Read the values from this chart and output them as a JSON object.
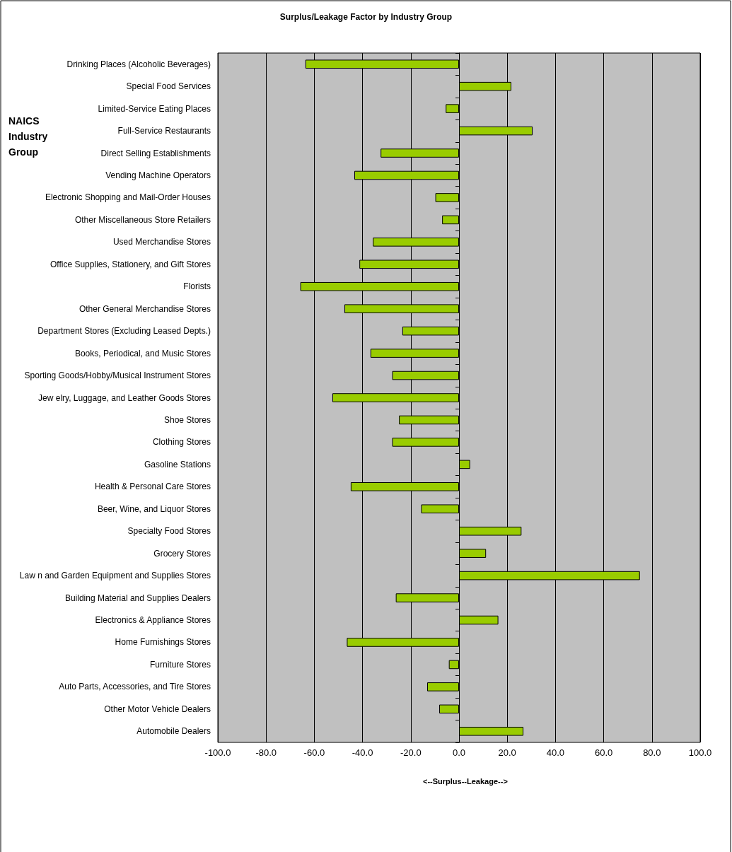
{
  "chart_data": {
    "type": "bar",
    "orientation": "horizontal",
    "title": "Surplus/Leakage Factor by Industry Group",
    "xlabel": "<--Surplus--Leakage-->",
    "ylabel": "NAICS Industry Group",
    "categories": [
      "Drinking Places (Alcoholic Beverages)",
      "Special Food Services",
      "Limited-Service Eating Places",
      "Full-Service Restaurants",
      "Direct Selling Establishments",
      "Vending Machine Operators",
      "Electronic Shopping and Mail-Order Houses",
      "Other Miscellaneous Store Retailers",
      "Used Merchandise Stores",
      "Office Supplies, Stationery, and Gift Stores",
      "Florists",
      "Other General Merchandise Stores",
      "Department Stores (Excluding Leased Depts.)",
      "Books, Periodical, and Music Stores",
      "Sporting Goods/Hobby/Musical Instrument Stores",
      "Jew elry, Luggage, and Leather Goods Stores",
      "Shoe Stores",
      "Clothing Stores",
      "Gasoline Stations",
      "Health & Personal Care Stores",
      "Beer, Wine, and Liquor Stores",
      "Specialty Food Stores",
      "Grocery Stores",
      "Law n and Garden Equipment and Supplies Stores",
      "Building Material and Supplies Dealers",
      "Electronics & Appliance Stores",
      "Home Furnishings Stores",
      "Furniture Stores",
      "Auto Parts, Accessories, and Tire Stores",
      "Other Motor Vehicle Dealers",
      "Automobile Dealers"
    ],
    "values": [
      -63.7,
      21.7,
      -5.5,
      30.5,
      -32.5,
      -43.4,
      -9.8,
      -7.0,
      -35.7,
      -41.3,
      -65.8,
      -47.5,
      -23.5,
      -36.7,
      -27.7,
      -52.5,
      -24.9,
      -27.7,
      4.6,
      -44.9,
      -15.7,
      25.9,
      11.2,
      75.0,
      -26.2,
      16.3,
      -46.5,
      -4.2,
      -13.2,
      -8.2,
      26.7
    ],
    "color": "#99cc00",
    "xlim": [
      -100,
      100
    ],
    "xticks": [
      {
        "value": -100,
        "label": "-100.0"
      },
      {
        "value": -80,
        "label": "-80.0"
      },
      {
        "value": -60,
        "label": "-60.0"
      },
      {
        "value": -40,
        "label": "-40.0"
      },
      {
        "value": -20,
        "label": "-20.0"
      },
      {
        "value": 0,
        "label": "0.0"
      },
      {
        "value": 20,
        "label": "20.0"
      },
      {
        "value": 40,
        "label": "40.0"
      },
      {
        "value": 60,
        "label": "60.0"
      },
      {
        "value": 80,
        "label": "80.0"
      },
      {
        "value": 100,
        "label": "100.0"
      }
    ],
    "grid": "x"
  }
}
